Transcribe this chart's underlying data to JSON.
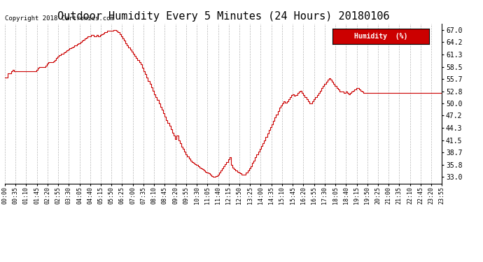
{
  "title": "Outdoor Humidity Every 5 Minutes (24 Hours) 20180106",
  "copyright": "Copyright 2018 Cartronics.com",
  "legend_label": "Humidity  (%)",
  "legend_bg": "#cc0000",
  "legend_text_color": "#ffffff",
  "line_color": "#cc0000",
  "bg_color": "#ffffff",
  "grid_color": "#888888",
  "title_fontsize": 11,
  "tick_fontsize": 6.5,
  "yticks": [
    33.0,
    35.8,
    38.7,
    41.5,
    44.3,
    47.2,
    50.0,
    52.8,
    55.7,
    58.5,
    61.3,
    64.2,
    67.0
  ],
  "ylim": [
    31.5,
    68.5
  ],
  "humidity_data": [
    56.0,
    56.0,
    57.0,
    57.0,
    57.5,
    57.8,
    57.5,
    57.5,
    57.5,
    57.5,
    57.5,
    57.5,
    57.5,
    57.5,
    57.5,
    57.5,
    57.5,
    57.5,
    57.5,
    57.5,
    57.5,
    57.8,
    58.2,
    58.5,
    58.5,
    58.5,
    58.5,
    58.8,
    59.2,
    59.5,
    59.5,
    59.5,
    59.8,
    60.1,
    60.5,
    60.8,
    61.2,
    61.5,
    61.5,
    61.8,
    62.0,
    62.3,
    62.5,
    62.8,
    63.0,
    63.2,
    63.5,
    63.5,
    63.8,
    64.0,
    64.2,
    64.5,
    64.8,
    65.0,
    65.2,
    65.5,
    65.5,
    65.8,
    65.8,
    65.5,
    65.5,
    65.8,
    65.5,
    65.8,
    66.0,
    66.2,
    66.5,
    66.5,
    66.8,
    66.8,
    66.8,
    66.8,
    67.0,
    67.0,
    66.8,
    66.5,
    66.0,
    65.5,
    65.0,
    64.5,
    64.0,
    63.5,
    63.0,
    62.5,
    62.0,
    61.5,
    61.0,
    60.5,
    60.0,
    59.5,
    59.0,
    58.2,
    57.5,
    56.8,
    56.0,
    55.2,
    54.5,
    53.8,
    53.0,
    52.2,
    51.5,
    50.8,
    50.0,
    49.2,
    48.5,
    47.8,
    47.0,
    46.2,
    45.5,
    44.8,
    44.0,
    43.2,
    42.5,
    41.8,
    42.5,
    41.5,
    40.8,
    40.0,
    39.5,
    38.8,
    38.2,
    37.8,
    37.2,
    36.8,
    36.5,
    36.2,
    36.0,
    35.8,
    35.5,
    35.2,
    35.0,
    34.8,
    34.5,
    34.2,
    34.0,
    33.8,
    33.5,
    33.2,
    33.0,
    33.0,
    33.2,
    33.5,
    34.0,
    34.5,
    35.0,
    35.5,
    36.0,
    36.5,
    37.0,
    37.5,
    35.8,
    35.2,
    34.8,
    34.5,
    34.2,
    34.0,
    33.8,
    33.5,
    33.5,
    33.5,
    34.0,
    34.5,
    35.0,
    35.5,
    36.2,
    36.8,
    37.5,
    38.2,
    38.8,
    39.5,
    40.2,
    40.8,
    41.5,
    42.2,
    43.0,
    43.8,
    44.5,
    45.2,
    46.0,
    46.8,
    47.5,
    48.2,
    49.0,
    49.5,
    50.0,
    50.5,
    50.2,
    50.5,
    51.0,
    51.5,
    52.0,
    52.2,
    51.8,
    52.0,
    52.5,
    52.8,
    53.0,
    52.5,
    52.0,
    51.5,
    51.0,
    50.5,
    50.0,
    50.0,
    50.5,
    51.0,
    51.5,
    52.0,
    52.5,
    53.0,
    53.5,
    54.0,
    54.5,
    55.0,
    55.5,
    55.8,
    55.5,
    55.0,
    54.5,
    54.0,
    53.5,
    53.2,
    52.8,
    52.8,
    52.8,
    52.5,
    52.8,
    52.5,
    52.2,
    52.5,
    52.8,
    53.0,
    53.2,
    53.5,
    53.5,
    53.2,
    53.0,
    52.8,
    52.5,
    52.5,
    52.5,
    52.5,
    52.5,
    52.5,
    52.5,
    52.5,
    52.5,
    52.5,
    52.5,
    52.5,
    52.5,
    52.5,
    52.5,
    52.5,
    52.5,
    52.5,
    52.5,
    52.5,
    52.5,
    52.5,
    52.5,
    52.5,
    52.5,
    52.5,
    52.5,
    52.5,
    52.5,
    52.5,
    52.5,
    52.5,
    52.5,
    52.5,
    52.5,
    52.5,
    52.5,
    52.5,
    52.5,
    52.5,
    52.5,
    52.5,
    52.5,
    52.5,
    52.5,
    52.5,
    52.5,
    52.5,
    52.5,
    52.5,
    52.5,
    52.5,
    52.5
  ],
  "xtick_labels": [
    "00:00",
    "00:35",
    "01:10",
    "01:45",
    "02:20",
    "02:55",
    "03:30",
    "04:05",
    "04:40",
    "05:15",
    "05:50",
    "06:25",
    "07:00",
    "07:35",
    "08:10",
    "08:45",
    "09:20",
    "09:55",
    "10:30",
    "11:05",
    "11:40",
    "12:15",
    "12:50",
    "13:25",
    "14:00",
    "14:35",
    "15:10",
    "15:45",
    "16:20",
    "16:55",
    "17:30",
    "18:05",
    "18:40",
    "19:15",
    "19:50",
    "20:25",
    "21:00",
    "21:35",
    "22:10",
    "22:45",
    "23:20",
    "23:55"
  ]
}
